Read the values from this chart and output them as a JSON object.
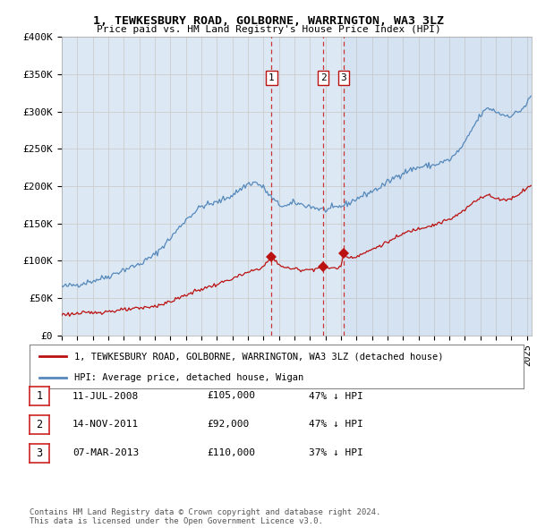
{
  "title": "1, TEWKESBURY ROAD, GOLBORNE, WARRINGTON, WA3 3LZ",
  "subtitle": "Price paid vs. HM Land Registry's House Price Index (HPI)",
  "background_color": "#ffffff",
  "plot_bg_color": "#dce9f5",
  "ylim": [
    0,
    400000
  ],
  "yticks": [
    0,
    50000,
    100000,
    150000,
    200000,
    250000,
    300000,
    350000,
    400000
  ],
  "ytick_labels": [
    "£0",
    "£50K",
    "£100K",
    "£150K",
    "£200K",
    "£250K",
    "£300K",
    "£350K",
    "£400K"
  ],
  "xlim_start": 1995.0,
  "xlim_end": 2025.3,
  "transactions": [
    {
      "num": 1,
      "date": "11-JUL-2008",
      "price": 105000,
      "year": 2008.53,
      "label": "47% ↓ HPI"
    },
    {
      "num": 2,
      "date": "14-NOV-2011",
      "price": 92000,
      "year": 2011.87,
      "label": "47% ↓ HPI"
    },
    {
      "num": 3,
      "date": "07-MAR-2013",
      "price": 110000,
      "year": 2013.18,
      "label": "37% ↓ HPI"
    }
  ],
  "legend_property": "1, TEWKESBURY ROAD, GOLBORNE, WARRINGTON, WA3 3LZ (detached house)",
  "legend_hpi": "HPI: Average price, detached house, Wigan",
  "footer": "Contains HM Land Registry data © Crown copyright and database right 2024.\nThis data is licensed under the Open Government Licence v3.0.",
  "hpi_color": "#5588bb",
  "property_color": "#bb1111",
  "vline_color": "#cc3333",
  "marker_color": "#bb1111",
  "grid_color": "#cccccc",
  "shade_color": "#ccddf0"
}
